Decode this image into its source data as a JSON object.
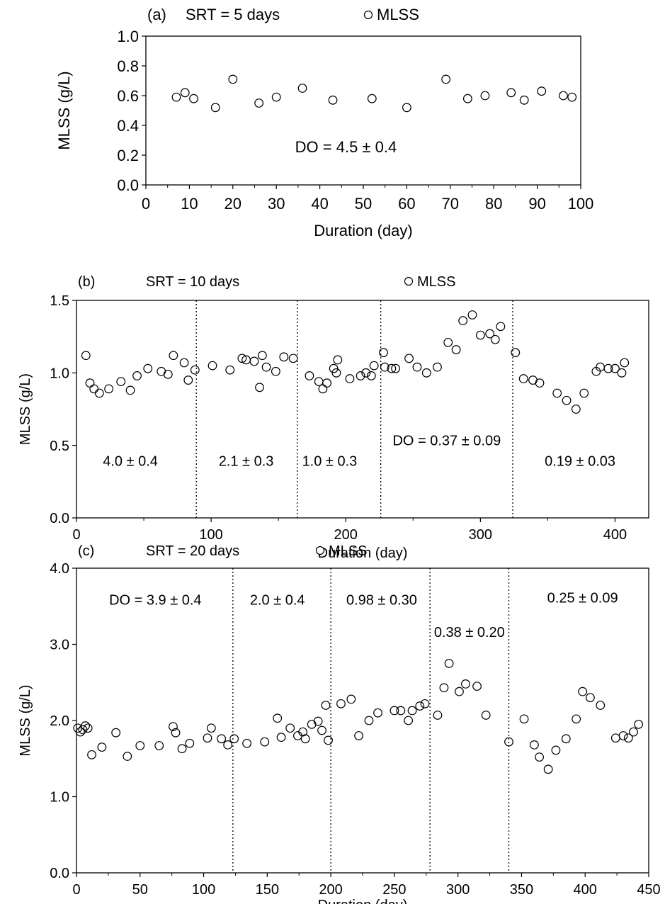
{
  "chart_data": [
    {
      "type": "scatter",
      "panel_label": "(a)",
      "srt_text": "SRT = 5 days",
      "legend": "MLSS",
      "xlabel": "Duration (day)",
      "ylabel": "MLSS (g/L)",
      "xlim": [
        0,
        100
      ],
      "ylim": [
        0.0,
        1.0
      ],
      "xticks": [
        0,
        10,
        20,
        30,
        40,
        50,
        60,
        70,
        80,
        90,
        100
      ],
      "yticks": [
        "0.0",
        "0.2",
        "0.4",
        "0.6",
        "0.8",
        "1.0"
      ],
      "minor_x_step": 5,
      "dividers": [],
      "annotations": [
        {
          "text": "DO =  4.5 ± 0.4",
          "x": 46,
          "y": 0.22
        }
      ],
      "series": [
        {
          "name": "MLSS",
          "points": [
            [
              7,
              0.59
            ],
            [
              9,
              0.62
            ],
            [
              11,
              0.58
            ],
            [
              16,
              0.52
            ],
            [
              20,
              0.71
            ],
            [
              26,
              0.55
            ],
            [
              30,
              0.59
            ],
            [
              36,
              0.65
            ],
            [
              43,
              0.57
            ],
            [
              52,
              0.58
            ],
            [
              60,
              0.52
            ],
            [
              69,
              0.71
            ],
            [
              74,
              0.58
            ],
            [
              78,
              0.6
            ],
            [
              84,
              0.62
            ],
            [
              87,
              0.57
            ],
            [
              91,
              0.63
            ],
            [
              96,
              0.6
            ],
            [
              98,
              0.59
            ]
          ]
        }
      ]
    },
    {
      "type": "scatter",
      "panel_label": "(b)",
      "srt_text": "SRT = 10 days",
      "legend": "MLSS",
      "xlabel": "Duration (day)",
      "ylabel": "MLSS (g/L)",
      "xlim": [
        0,
        425
      ],
      "ylim": [
        0.0,
        1.5
      ],
      "xticks": [
        0,
        100,
        200,
        300,
        400
      ],
      "yticks": [
        "0.0",
        "0.5",
        "1.0",
        "1.5"
      ],
      "minor_x_step": 50,
      "dividers": [
        89,
        164,
        226,
        324
      ],
      "annotations": [
        {
          "text": "4.0 ± 0.4",
          "x": 40,
          "y": 0.36
        },
        {
          "text": "2.1 ± 0.3",
          "x": 126,
          "y": 0.36
        },
        {
          "text": "1.0 ± 0.3",
          "x": 188,
          "y": 0.36
        },
        {
          "text": "DO = 0.37 ± 0.09",
          "x": 275,
          "y": 0.5
        },
        {
          "text": "0.19 ± 0.03",
          "x": 374,
          "y": 0.36
        }
      ],
      "series": [
        {
          "name": "MLSS",
          "points": [
            [
              7,
              1.12
            ],
            [
              10,
              0.93
            ],
            [
              13,
              0.89
            ],
            [
              17,
              0.86
            ],
            [
              24,
              0.89
            ],
            [
              33,
              0.94
            ],
            [
              40,
              0.88
            ],
            [
              45,
              0.98
            ],
            [
              53,
              1.03
            ],
            [
              63,
              1.01
            ],
            [
              68,
              0.99
            ],
            [
              72,
              1.12
            ],
            [
              80,
              1.07
            ],
            [
              83,
              0.95
            ],
            [
              88,
              1.02
            ],
            [
              101,
              1.05
            ],
            [
              114,
              1.02
            ],
            [
              123,
              1.1
            ],
            [
              126,
              1.09
            ],
            [
              132,
              1.08
            ],
            [
              136,
              0.9
            ],
            [
              138,
              1.12
            ],
            [
              141,
              1.04
            ],
            [
              148,
              1.01
            ],
            [
              154,
              1.11
            ],
            [
              161,
              1.1
            ],
            [
              173,
              0.98
            ],
            [
              180,
              0.94
            ],
            [
              183,
              0.89
            ],
            [
              186,
              0.93
            ],
            [
              191,
              1.03
            ],
            [
              193,
              1.0
            ],
            [
              194,
              1.09
            ],
            [
              203,
              0.96
            ],
            [
              211,
              0.98
            ],
            [
              215,
              1.0
            ],
            [
              219,
              0.98
            ],
            [
              221,
              1.05
            ],
            [
              228,
              1.14
            ],
            [
              229,
              1.04
            ],
            [
              234,
              1.03
            ],
            [
              237,
              1.03
            ],
            [
              247,
              1.1
            ],
            [
              253,
              1.04
            ],
            [
              260,
              1.0
            ],
            [
              268,
              1.04
            ],
            [
              276,
              1.21
            ],
            [
              282,
              1.16
            ],
            [
              287,
              1.36
            ],
            [
              294,
              1.4
            ],
            [
              300,
              1.26
            ],
            [
              307,
              1.27
            ],
            [
              311,
              1.23
            ],
            [
              315,
              1.32
            ],
            [
              326,
              1.14
            ],
            [
              332,
              0.96
            ],
            [
              339,
              0.95
            ],
            [
              344,
              0.93
            ],
            [
              357,
              0.86
            ],
            [
              364,
              0.81
            ],
            [
              371,
              0.75
            ],
            [
              377,
              0.86
            ],
            [
              386,
              1.01
            ],
            [
              389,
              1.04
            ],
            [
              395,
              1.03
            ],
            [
              400,
              1.03
            ],
            [
              405,
              1.0
            ],
            [
              407,
              1.07
            ]
          ]
        }
      ]
    },
    {
      "type": "scatter",
      "panel_label": "(c)",
      "srt_text": "SRT = 20 days",
      "legend": "MLSS",
      "xlabel": "Duration (day)",
      "ylabel": "MLSS (g/L)",
      "xlim": [
        0,
        450
      ],
      "ylim": [
        0.0,
        4.0
      ],
      "xticks": [
        0,
        50,
        100,
        150,
        200,
        250,
        300,
        350,
        400,
        450
      ],
      "yticks": [
        "0.0",
        "1.0",
        "2.0",
        "3.0",
        "4.0"
      ],
      "minor_x_step": 25,
      "dividers": [
        123,
        200,
        278,
        340
      ],
      "annotations": [
        {
          "text": "DO = 3.9 ± 0.4",
          "x": 62,
          "y": 3.52
        },
        {
          "text": "2.0 ± 0.4",
          "x": 158,
          "y": 3.52
        },
        {
          "text": "0.98 ± 0.30",
          "x": 240,
          "y": 3.52
        },
        {
          "text": "0.38 ± 0.20",
          "x": 309,
          "y": 3.1
        },
        {
          "text": "0.25 ± 0.09",
          "x": 398,
          "y": 3.55
        }
      ],
      "series": [
        {
          "name": "MLSS",
          "points": [
            [
              1,
              1.9
            ],
            [
              3,
              1.85
            ],
            [
              5,
              1.88
            ],
            [
              7,
              1.93
            ],
            [
              9,
              1.9
            ],
            [
              12,
              1.55
            ],
            [
              20,
              1.65
            ],
            [
              31,
              1.84
            ],
            [
              40,
              1.53
            ],
            [
              50,
              1.67
            ],
            [
              65,
              1.67
            ],
            [
              76,
              1.92
            ],
            [
              78,
              1.84
            ],
            [
              83,
              1.63
            ],
            [
              89,
              1.7
            ],
            [
              103,
              1.77
            ],
            [
              106,
              1.9
            ],
            [
              114,
              1.76
            ],
            [
              119,
              1.68
            ],
            [
              124,
              1.76
            ],
            [
              134,
              1.7
            ],
            [
              148,
              1.72
            ],
            [
              158,
              2.03
            ],
            [
              161,
              1.78
            ],
            [
              168,
              1.9
            ],
            [
              174,
              1.8
            ],
            [
              178,
              1.85
            ],
            [
              180,
              1.76
            ],
            [
              185,
              1.95
            ],
            [
              190,
              1.99
            ],
            [
              193,
              1.87
            ],
            [
              196,
              2.2
            ],
            [
              198,
              1.74
            ],
            [
              208,
              2.22
            ],
            [
              216,
              2.28
            ],
            [
              222,
              1.8
            ],
            [
              230,
              2.0
            ],
            [
              237,
              2.1
            ],
            [
              250,
              2.13
            ],
            [
              255,
              2.13
            ],
            [
              261,
              2.0
            ],
            [
              264,
              2.13
            ],
            [
              270,
              2.19
            ],
            [
              274,
              2.22
            ],
            [
              284,
              2.07
            ],
            [
              289,
              2.43
            ],
            [
              293,
              2.75
            ],
            [
              301,
              2.38
            ],
            [
              306,
              2.48
            ],
            [
              315,
              2.45
            ],
            [
              322,
              2.07
            ],
            [
              340,
              1.72
            ],
            [
              352,
              2.02
            ],
            [
              360,
              1.68
            ],
            [
              364,
              1.52
            ],
            [
              371,
              1.36
            ],
            [
              377,
              1.61
            ],
            [
              385,
              1.76
            ],
            [
              393,
              2.02
            ],
            [
              398,
              2.38
            ],
            [
              404,
              2.3
            ],
            [
              412,
              2.2
            ],
            [
              424,
              1.77
            ],
            [
              430,
              1.8
            ],
            [
              434,
              1.77
            ],
            [
              438,
              1.85
            ],
            [
              442,
              1.95
            ]
          ]
        }
      ]
    }
  ]
}
